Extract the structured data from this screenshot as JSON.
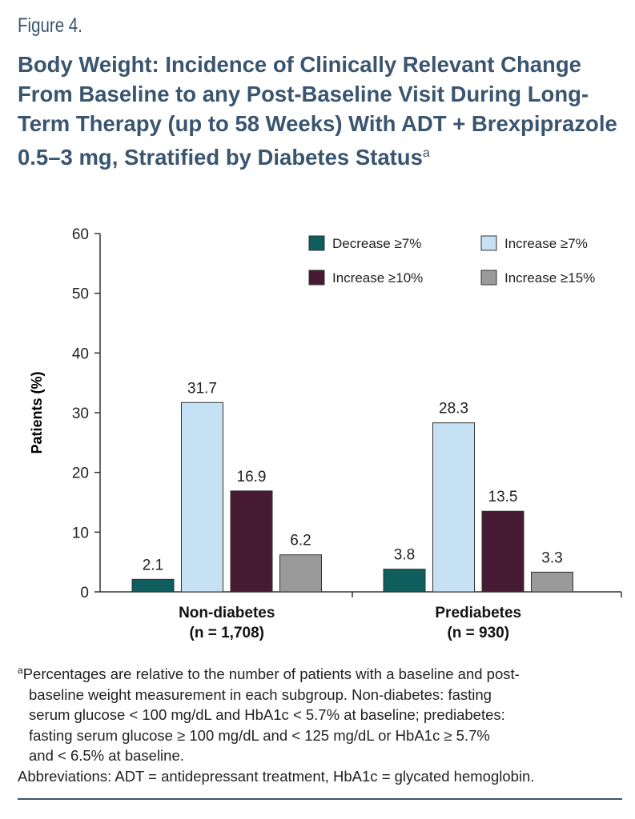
{
  "figure_label": "Figure 4.",
  "title": "Body Weight: Incidence of Clinically Relevant Change From Baseline to any Post-Baseline Visit During Long-Term Therapy (up to 58 Weeks) With ADT + Brexpiprazole 0.5–3 mg, Stratified by Diabetes Status",
  "title_superscript": "a",
  "chart_data": {
    "type": "bar",
    "ylabel": "Patients (%)",
    "ylim": [
      0,
      60
    ],
    "yticks": [
      0,
      10,
      20,
      30,
      40,
      50,
      60
    ],
    "categories": [
      "Non-diabetes",
      "Prediabetes"
    ],
    "category_sublabels": [
      "(n = 1,708)",
      "(n = 930)"
    ],
    "legend_position": "top-right",
    "grid": false,
    "series": [
      {
        "name": "Decrease ≥7%",
        "values": [
          2.1,
          3.8
        ],
        "color": "#0f5e5e"
      },
      {
        "name": "Increase ≥7%",
        "values": [
          31.7,
          28.3
        ],
        "color": "#c6e0f4"
      },
      {
        "name": "Increase ≥10%",
        "values": [
          16.9,
          13.5
        ],
        "color": "#451a32"
      },
      {
        "name": "Increase ≥15%",
        "values": [
          6.2,
          3.3
        ],
        "color": "#9a9a9a"
      }
    ]
  },
  "footnote": {
    "marker": "a",
    "text_first": "Percentages are relative to the number of patients with a baseline and post-",
    "lines": [
      "baseline weight measurement in each subgroup. Non-diabetes: fasting",
      "serum glucose < 100 mg/dL and HbA1c < 5.7% at baseline; prediabetes:",
      "fasting serum glucose ≥ 100 mg/dL and < 125 mg/dL or HbA1c ≥ 5.7%",
      "and < 6.5% at baseline."
    ],
    "abbreviations": "Abbreviations: ADT = antidepressant treatment, HbA1c = glycated hemoglobin."
  }
}
